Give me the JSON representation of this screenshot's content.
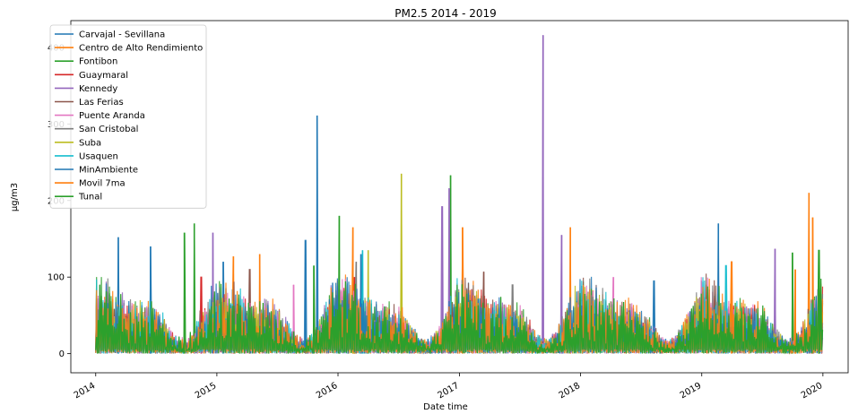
{
  "chart_data": {
    "type": "line",
    "title": "PM2.5 2014 - 2019",
    "xlabel": "Date time",
    "ylabel": "µg/m3",
    "xlim": [
      "2013-10-18",
      "2020-03-17"
    ],
    "ylim": [
      -25,
      435
    ],
    "x_tick_labels": [
      "2014",
      "2015",
      "2016",
      "2017",
      "2018",
      "2019",
      "2020"
    ],
    "y_ticks": [
      0,
      100,
      200,
      300,
      400
    ],
    "grid": false,
    "legend_position": "upper-left",
    "series": [
      {
        "name": "Carvajal - Sevillana",
        "color": "#1f77b4",
        "peaks": [
          [
            "2014-03-10",
            152
          ],
          [
            "2014-06-15",
            140
          ],
          [
            "2015-01-20",
            120
          ],
          [
            "2016-03-10",
            130
          ],
          [
            "2018-08-10",
            95
          ],
          [
            "2019-02-20",
            170
          ]
        ]
      },
      {
        "name": "Centro de Alto Rendimiento",
        "color": "#ff7f0e",
        "peaks": [
          [
            "2015-02-20",
            127
          ],
          [
            "2015-05-10",
            130
          ],
          [
            "2016-02-15",
            165
          ],
          [
            "2017-01-10",
            165
          ],
          [
            "2017-12-01",
            165
          ],
          [
            "2019-11-20",
            210
          ],
          [
            "2019-12-01",
            178
          ]
        ]
      },
      {
        "name": "Fontibon",
        "color": "#2ca02c",
        "peaks": [
          [
            "2014-10-25",
            170
          ],
          [
            "2016-01-05",
            180
          ],
          [
            "2016-12-05",
            233
          ],
          [
            "2019-10-01",
            132
          ]
        ]
      },
      {
        "name": "Guaymaral",
        "color": "#d62728",
        "peaks": [
          [
            "2014-11-15",
            100
          ],
          [
            "2016-02-20",
            100
          ]
        ]
      },
      {
        "name": "Kennedy",
        "color": "#9467bd",
        "peaks": [
          [
            "2014-12-20",
            158
          ],
          [
            "2016-11-10",
            192
          ],
          [
            "2016-12-01",
            216
          ],
          [
            "2017-09-10",
            416
          ],
          [
            "2017-11-05",
            155
          ],
          [
            "2019-08-10",
            137
          ]
        ]
      },
      {
        "name": "Las Ferias",
        "color": "#8c564b",
        "peaks": [
          [
            "2015-04-10",
            110
          ],
          [
            "2017-03-15",
            107
          ]
        ]
      },
      {
        "name": "Puente Aranda",
        "color": "#e377c2",
        "peaks": [
          [
            "2015-08-20",
            90
          ],
          [
            "2018-04-10",
            100
          ]
        ]
      },
      {
        "name": "San Cristobal",
        "color": "#7f7f7f",
        "peaks": [
          [
            "2016-02-25",
            120
          ],
          [
            "2017-06-10",
            90
          ]
        ]
      },
      {
        "name": "Suba",
        "color": "#bcbd22",
        "peaks": [
          [
            "2016-07-10",
            235
          ],
          [
            "2016-04-01",
            135
          ]
        ]
      },
      {
        "name": "Usaquen",
        "color": "#17becf",
        "peaks": [
          [
            "2016-03-15",
            135
          ],
          [
            "2019-03-15",
            115
          ]
        ]
      },
      {
        "name": "MinAmbiente",
        "color": "#1f77b4",
        "peaks": [
          [
            "2015-10-30",
            311
          ],
          [
            "2015-09-25",
            148
          ]
        ]
      },
      {
        "name": "Movil 7ma",
        "color": "#ff7f0e",
        "peaks": [
          [
            "2019-04-01",
            120
          ],
          [
            "2019-10-10",
            110
          ]
        ]
      },
      {
        "name": "Tunal",
        "color": "#2ca02c",
        "peaks": [
          [
            "2014-09-25",
            158
          ],
          [
            "2015-10-20",
            115
          ],
          [
            "2019-12-20",
            135
          ]
        ]
      }
    ]
  }
}
